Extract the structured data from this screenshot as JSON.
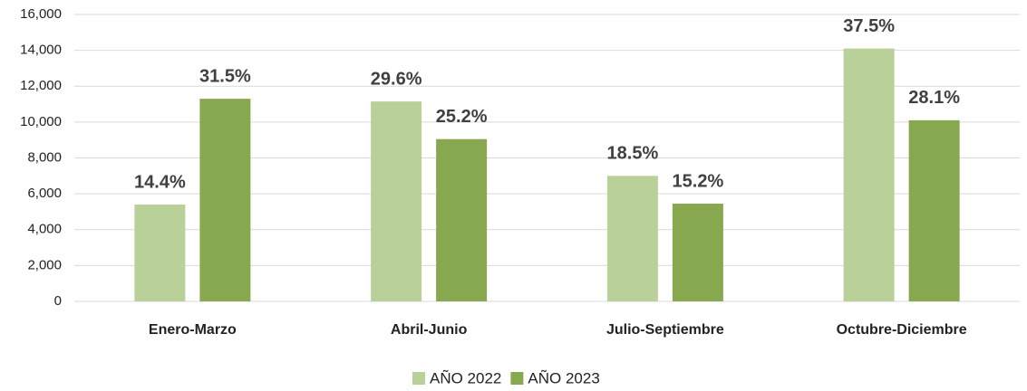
{
  "chart_data": {
    "type": "bar",
    "categories": [
      "Enero-Marzo",
      "Abril-Junio",
      "Julio-Septiembre",
      "Octubre-Diciembre"
    ],
    "series": [
      {
        "name": "AÑO 2022",
        "color": "#b9d098",
        "values": [
          5400,
          11150,
          7000,
          14100
        ],
        "annotations": [
          "14.4%",
          "29.6%",
          "18.5%",
          "37.5%"
        ]
      },
      {
        "name": "AÑO 2023",
        "color": "#88a84f",
        "values": [
          11300,
          9050,
          5450,
          10100
        ],
        "annotations": [
          "31.5%",
          "25.2%",
          "15.2%",
          "28.1%"
        ]
      }
    ],
    "ylim": [
      0,
      16000
    ],
    "yticks": [
      0,
      {
        "value": 2000,
        "label": "2,000"
      },
      {
        "value": 4000,
        "label": "4,000"
      },
      {
        "value": 6000,
        "label": "6,000"
      },
      {
        "value": 8000,
        "label": "8,000"
      },
      {
        "value": 10000,
        "label": "10,000"
      },
      {
        "value": 12000,
        "label": "12,000"
      },
      {
        "value": 14000,
        "label": "14,000"
      },
      {
        "value": 16000,
        "label": "16,000"
      }
    ],
    "grid": true,
    "legend": "bottom"
  }
}
